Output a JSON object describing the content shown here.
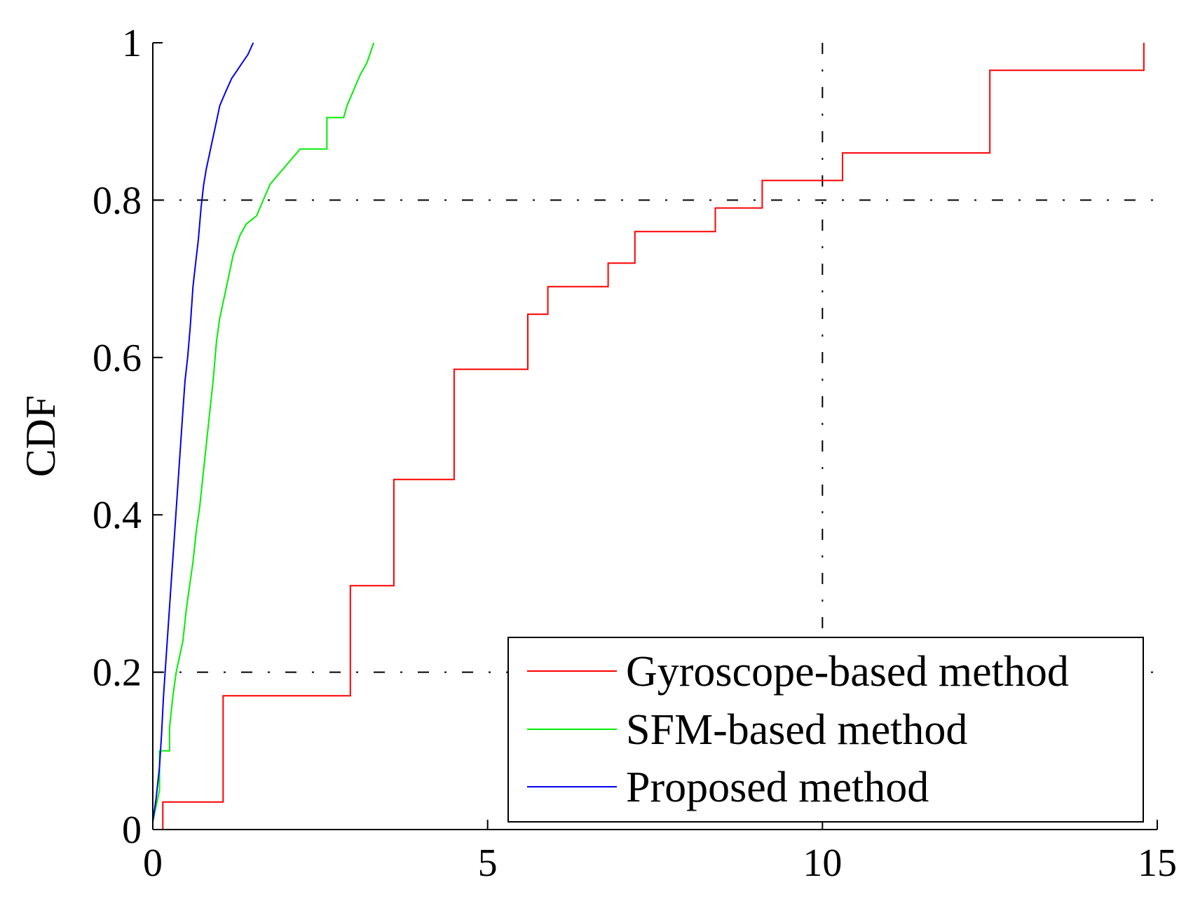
{
  "chart_data": {
    "type": "line",
    "title": "",
    "xlabel": "",
    "ylabel": "CDF",
    "xlim": [
      0,
      15
    ],
    "ylim": [
      0,
      1
    ],
    "xticks": [
      0,
      5,
      10,
      15
    ],
    "xtick_labels": [
      "0",
      "5",
      "10",
      "15"
    ],
    "yticks": [
      0,
      0.2,
      0.4,
      0.6,
      0.8,
      1
    ],
    "ytick_labels": [
      "0",
      "0.2",
      "0.4",
      "0.6",
      "0.8",
      "1"
    ],
    "grid": false,
    "legend_position": "bottom-right",
    "reference_lines": {
      "horizontal": [
        0.2,
        0.8
      ],
      "vertical": [
        10
      ],
      "color": "#000000",
      "style": "dash-dot"
    },
    "series": [
      {
        "name": "Gyroscope-based method",
        "color": "#ff0000",
        "x": [
          0.15,
          0.15,
          1.05,
          1.05,
          2.95,
          2.95,
          3.6,
          3.6,
          4.5,
          4.5,
          5.6,
          5.6,
          5.9,
          5.9,
          6.8,
          6.8,
          7.2,
          7.2,
          8.4,
          8.4,
          9.1,
          9.1,
          10.3,
          10.3,
          12.5,
          12.5,
          14.8,
          14.8
        ],
        "y": [
          0,
          0.035,
          0.035,
          0.17,
          0.17,
          0.31,
          0.31,
          0.445,
          0.445,
          0.585,
          0.585,
          0.655,
          0.655,
          0.69,
          0.69,
          0.72,
          0.72,
          0.76,
          0.76,
          0.79,
          0.79,
          0.825,
          0.825,
          0.86,
          0.86,
          0.965,
          0.965,
          1.0
        ]
      },
      {
        "name": "SFM-based method",
        "color": "#00ee00",
        "x": [
          0,
          0.05,
          0.1,
          0.1,
          0.25,
          0.25,
          0.3,
          0.35,
          0.45,
          0.5,
          0.55,
          0.6,
          0.65,
          0.7,
          0.75,
          0.8,
          0.85,
          0.9,
          0.95,
          1.0,
          1.05,
          1.1,
          1.15,
          1.2,
          1.3,
          1.4,
          1.55,
          1.65,
          1.75,
          1.85,
          2.0,
          2.2,
          2.6,
          2.6,
          2.85,
          2.9,
          3.0,
          3.1,
          3.2,
          3.3
        ],
        "y": [
          0.01,
          0.03,
          0.05,
          0.1,
          0.1,
          0.13,
          0.17,
          0.2,
          0.24,
          0.28,
          0.31,
          0.34,
          0.38,
          0.41,
          0.45,
          0.49,
          0.53,
          0.57,
          0.62,
          0.65,
          0.67,
          0.69,
          0.71,
          0.73,
          0.755,
          0.77,
          0.78,
          0.8,
          0.82,
          0.83,
          0.845,
          0.865,
          0.865,
          0.905,
          0.905,
          0.92,
          0.94,
          0.96,
          0.975,
          1.0
        ]
      },
      {
        "name": "Proposed method",
        "color": "#0000ee",
        "x": [
          0,
          0.05,
          0.1,
          0.13,
          0.16,
          0.2,
          0.24,
          0.28,
          0.32,
          0.36,
          0.4,
          0.44,
          0.48,
          0.52,
          0.56,
          0.6,
          0.64,
          0.68,
          0.72,
          0.76,
          0.8,
          0.85,
          0.9,
          0.95,
          1.0,
          1.05,
          1.1,
          1.18,
          1.26,
          1.34,
          1.42,
          1.5
        ],
        "y": [
          0.01,
          0.04,
          0.08,
          0.12,
          0.17,
          0.22,
          0.27,
          0.32,
          0.37,
          0.42,
          0.47,
          0.52,
          0.57,
          0.6,
          0.64,
          0.69,
          0.72,
          0.75,
          0.79,
          0.82,
          0.84,
          0.86,
          0.88,
          0.9,
          0.92,
          0.93,
          0.94,
          0.955,
          0.965,
          0.975,
          0.985,
          1.0
        ]
      }
    ]
  }
}
